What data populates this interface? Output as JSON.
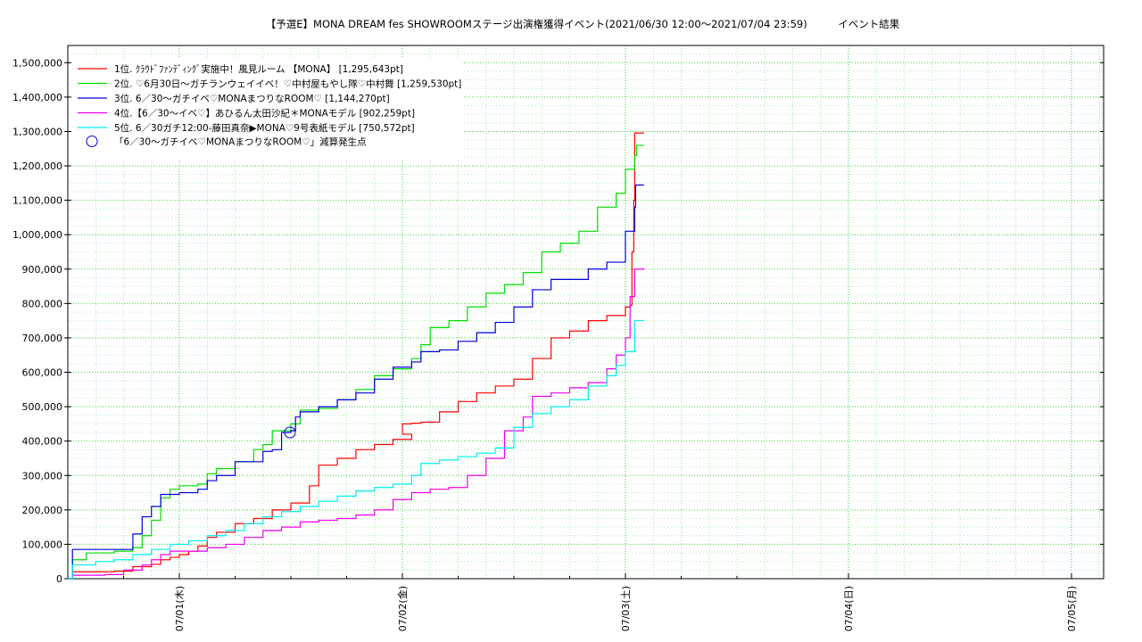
{
  "chart_data": {
    "type": "line",
    "title": "【予選E】MONA DREAM fes SHOWROOMステージ出演権獲得イベント(2021/06/30 12:00～2021/07/04 23:59)　　　イベント結果",
    "xlabel": "",
    "ylabel": "",
    "x_tick_labels": [
      "07/01(木)",
      "07/02(金)",
      "07/03(土)",
      "07/04(日)",
      "07/05(月)"
    ],
    "x_range_hours": [
      -12,
      25
    ],
    "ylim": [
      0,
      1550000
    ],
    "y_ticks": [
      0,
      100000,
      200000,
      300000,
      400000,
      500000,
      600000,
      700000,
      800000,
      900000,
      1000000,
      1100000,
      1200000,
      1300000,
      1400000,
      1500000
    ],
    "y_tick_labels": [
      "0",
      "100,000",
      "200,000",
      "300,000",
      "400,000",
      "500,000",
      "600,000",
      "700,000",
      "800,000",
      "900,000",
      "1,000,000",
      "1,100,000",
      "1,200,000",
      "1,300,000",
      "1,400,000",
      "1,500,000"
    ],
    "grid": true,
    "legend_position": "top-left",
    "series": [
      {
        "name": "1位. ｸﾗｳﾄﾞﾌｧﾝﾃﾞｨﾝｸﾞ実施中！風見ルーム 【MONA】 [1,295,643pt]",
        "color": "#ff0000",
        "points": [
          [
            -12,
            0
          ],
          [
            -11.5,
            20000
          ],
          [
            -7,
            22000
          ],
          [
            -5,
            35000
          ],
          [
            -3,
            42000
          ],
          [
            -2,
            55000
          ],
          [
            -1,
            62000
          ],
          [
            0,
            70000
          ],
          [
            1,
            80000
          ],
          [
            2,
            95000
          ],
          [
            3,
            120000
          ],
          [
            4,
            135000
          ],
          [
            6,
            160000
          ],
          [
            8,
            175000
          ],
          [
            10,
            200000
          ],
          [
            12,
            220000
          ],
          [
            14,
            270000
          ],
          [
            15,
            330000
          ],
          [
            17,
            350000
          ],
          [
            19,
            375000
          ],
          [
            21,
            390000
          ],
          [
            23,
            405000
          ],
          [
            25,
            420000
          ],
          [
            24,
            450000
          ],
          [
            25,
            452000
          ],
          [
            26,
            455000
          ],
          [
            28,
            485000
          ],
          [
            30,
            515000
          ],
          [
            32,
            540000
          ],
          [
            34,
            560000
          ],
          [
            36,
            580000
          ],
          [
            38,
            640000
          ],
          [
            40,
            700000
          ],
          [
            42,
            720000
          ],
          [
            44,
            750000
          ],
          [
            46,
            765000
          ],
          [
            48,
            790000
          ],
          [
            48.5,
            795000
          ],
          [
            48.7,
            950000
          ],
          [
            48.9,
            1100000
          ],
          [
            49,
            1295643
          ],
          [
            50,
            1295643
          ]
        ]
      },
      {
        "name": "2位. ♡6月30日〜ガチランウェイイベ！♡中村屋もやし隊♡中村舞 [1,259,530pt]",
        "color": "#00dd00",
        "points": [
          [
            -12,
            0
          ],
          [
            -11.5,
            55000
          ],
          [
            -10,
            75000
          ],
          [
            -7,
            80000
          ],
          [
            -5,
            90000
          ],
          [
            -4,
            125000
          ],
          [
            -3,
            170000
          ],
          [
            -2,
            235000
          ],
          [
            -1,
            260000
          ],
          [
            0,
            270000
          ],
          [
            2,
            275000
          ],
          [
            3,
            305000
          ],
          [
            4,
            320000
          ],
          [
            6,
            340000
          ],
          [
            8,
            375000
          ],
          [
            9,
            390000
          ],
          [
            10,
            430000
          ],
          [
            12,
            450000
          ],
          [
            13,
            490000
          ],
          [
            15,
            495000
          ],
          [
            17,
            520000
          ],
          [
            19,
            550000
          ],
          [
            21,
            590000
          ],
          [
            23,
            610000
          ],
          [
            25,
            640000
          ],
          [
            26,
            680000
          ],
          [
            27,
            730000
          ],
          [
            29,
            750000
          ],
          [
            31,
            790000
          ],
          [
            33,
            830000
          ],
          [
            35,
            855000
          ],
          [
            37,
            890000
          ],
          [
            39,
            950000
          ],
          [
            41,
            975000
          ],
          [
            43,
            1010000
          ],
          [
            45,
            1080000
          ],
          [
            47,
            1120000
          ],
          [
            48,
            1190000
          ],
          [
            49,
            1230000
          ],
          [
            49.2,
            1259530
          ],
          [
            50,
            1259530
          ]
        ]
      },
      {
        "name": "3位. 6／30～ガチイベ♡MONAまつりなROOM♡ [1,144,270pt]",
        "color": "#0000dd",
        "points": [
          [
            -12,
            0
          ],
          [
            -11.5,
            85000
          ],
          [
            -8,
            85000
          ],
          [
            -5,
            130000
          ],
          [
            -4,
            180000
          ],
          [
            -3,
            210000
          ],
          [
            -2,
            245000
          ],
          [
            0,
            250000
          ],
          [
            2,
            260000
          ],
          [
            3,
            285000
          ],
          [
            4,
            300000
          ],
          [
            6,
            340000
          ],
          [
            8,
            340000
          ],
          [
            9,
            370000
          ],
          [
            10,
            375000
          ],
          [
            11,
            425000
          ],
          [
            12,
            430000
          ],
          [
            12.5,
            470000
          ],
          [
            13,
            485000
          ],
          [
            15,
            500000
          ],
          [
            17,
            520000
          ],
          [
            19,
            540000
          ],
          [
            21,
            580000
          ],
          [
            23,
            615000
          ],
          [
            25,
            630000
          ],
          [
            26,
            660000
          ],
          [
            28,
            665000
          ],
          [
            30,
            690000
          ],
          [
            32,
            715000
          ],
          [
            34,
            745000
          ],
          [
            36,
            790000
          ],
          [
            38,
            840000
          ],
          [
            40,
            870000
          ],
          [
            42,
            870000
          ],
          [
            44,
            900000
          ],
          [
            46,
            920000
          ],
          [
            48,
            1010000
          ],
          [
            49,
            1080000
          ],
          [
            49.1,
            1144270
          ],
          [
            50,
            1144270
          ]
        ]
      },
      {
        "name": "4位.【6／30〜イベ♡】あひるん太田沙紀＊MONAモデル [902,259pt]",
        "color": "#ee00ee",
        "points": [
          [
            -12,
            0
          ],
          [
            -11.5,
            10000
          ],
          [
            -8,
            12000
          ],
          [
            -6,
            25000
          ],
          [
            -4,
            40000
          ],
          [
            -3,
            55000
          ],
          [
            -2,
            70000
          ],
          [
            -1,
            80000
          ],
          [
            1,
            80000
          ],
          [
            3,
            90000
          ],
          [
            5,
            100000
          ],
          [
            7,
            120000
          ],
          [
            9,
            140000
          ],
          [
            11,
            150000
          ],
          [
            13,
            165000
          ],
          [
            15,
            170000
          ],
          [
            17,
            175000
          ],
          [
            19,
            185000
          ],
          [
            21,
            200000
          ],
          [
            23,
            230000
          ],
          [
            25,
            250000
          ],
          [
            27,
            260000
          ],
          [
            29,
            265000
          ],
          [
            31,
            300000
          ],
          [
            33,
            350000
          ],
          [
            35,
            430000
          ],
          [
            37,
            470000
          ],
          [
            38,
            530000
          ],
          [
            40,
            540000
          ],
          [
            42,
            555000
          ],
          [
            44,
            570000
          ],
          [
            46,
            610000
          ],
          [
            47,
            650000
          ],
          [
            48,
            700000
          ],
          [
            48.5,
            820000
          ],
          [
            49,
            900000
          ],
          [
            50,
            902259
          ]
        ]
      },
      {
        "name": "5位. 6／30ガチ12:00-藤田真奈▶MONA♡9号表紙モデル [750,572pt]",
        "color": "#00eeee",
        "points": [
          [
            -12,
            0
          ],
          [
            -11.5,
            40000
          ],
          [
            -9,
            50000
          ],
          [
            -7,
            55000
          ],
          [
            -5,
            70000
          ],
          [
            -3,
            85000
          ],
          [
            -1,
            100000
          ],
          [
            1,
            110000
          ],
          [
            3,
            125000
          ],
          [
            5,
            140000
          ],
          [
            7,
            160000
          ],
          [
            9,
            180000
          ],
          [
            11,
            195000
          ],
          [
            13,
            210000
          ],
          [
            15,
            225000
          ],
          [
            17,
            240000
          ],
          [
            19,
            255000
          ],
          [
            21,
            265000
          ],
          [
            23,
            275000
          ],
          [
            25,
            300000
          ],
          [
            26,
            335000
          ],
          [
            28,
            345000
          ],
          [
            30,
            355000
          ],
          [
            32,
            365000
          ],
          [
            34,
            380000
          ],
          [
            36,
            440000
          ],
          [
            38,
            480000
          ],
          [
            40,
            500000
          ],
          [
            42,
            520000
          ],
          [
            44,
            560000
          ],
          [
            46,
            590000
          ],
          [
            47,
            620000
          ],
          [
            48,
            660000
          ],
          [
            49,
            750572
          ],
          [
            50,
            750572
          ]
        ]
      }
    ],
    "annotations": [
      {
        "type": "marker",
        "label": "「6／30～ガチイベ♡MONAまつりなROOM♡」減算発生点",
        "x": 11.9,
        "y": 425000,
        "color": "#0000dd"
      }
    ]
  }
}
